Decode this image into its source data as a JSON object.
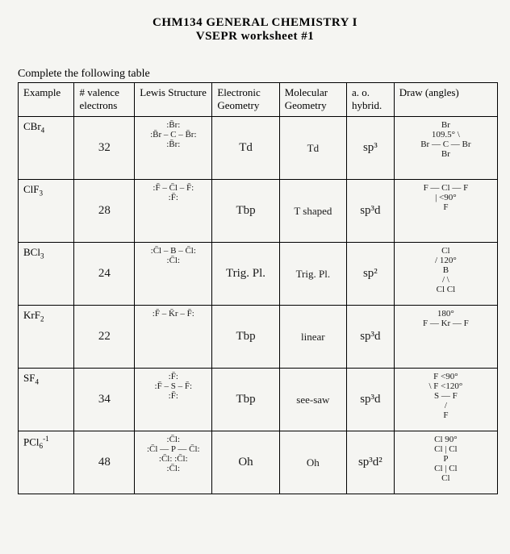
{
  "header": {
    "course": "CHM134 GENERAL CHEMISTRY I",
    "worksheet": "VSEPR worksheet #1"
  },
  "prompt": "Complete the following table",
  "columns": {
    "example": "Example",
    "valence": "# valence electrons",
    "lewis": "Lewis Structure",
    "egeom": "Electronic Geometry",
    "mgeom": "Molecular Geometry",
    "hybrid": "a. o. hybrid.",
    "draw": "Draw (angles)"
  },
  "rows": [
    {
      "example": "CBr",
      "example_sub": "4",
      "valence": "32",
      "lewis": ":B̄r:\n:B̄r – C – B̄r:\n:B̄r:",
      "egeom": "Td",
      "mgeom": "Td",
      "hybrid": "sp³",
      "draw": "Br\n109.5°  \\\nBr — C — Br\nBr"
    },
    {
      "example": "ClF",
      "example_sub": "3",
      "valence": "28",
      "lewis": ":F̄ – C̄l – F̄:\n:F̄:",
      "egeom": "Tbp",
      "mgeom": "T shaped",
      "hybrid": "sp³d",
      "draw": "F — Cl — F\n   |   <90°\n   F"
    },
    {
      "example": "BCl",
      "example_sub": "3",
      "valence": "24",
      "lewis": ":C̄l – B – C̄l:\n:C̄l:",
      "egeom": "Trig. Pl.",
      "mgeom": "Trig. Pl.",
      "hybrid": "sp²",
      "draw": "   Cl\n  / 120°\nB\n / \\\nCl  Cl"
    },
    {
      "example": "KrF",
      "example_sub": "2",
      "valence": "22",
      "lewis": ":F̄ – K̄r – F̄:",
      "egeom": "Tbp",
      "mgeom": "linear",
      "hybrid": "sp³d",
      "draw": "180°\nF — Kr — F"
    },
    {
      "example": "SF",
      "example_sub": "4",
      "valence": "34",
      "lewis": ":F̄:\n:F̄ – S – F̄:\n:F̄:",
      "egeom": "Tbp",
      "mgeom": "see-saw",
      "hybrid": "sp³d",
      "draw": "F  <90°\n \\ F <120°\nS — F\n / \nF"
    },
    {
      "example": "PCl",
      "example_sub": "6",
      "example_sup": "-1",
      "valence": "48",
      "lewis": ":C̄l:\n:C̄l — P — C̄l:\n:C̄l:  :C̄l:\n:C̄l:",
      "egeom": "Oh",
      "mgeom": "Oh",
      "hybrid": "sp³d²",
      "draw": "Cl  90°\nCl | Cl\n  P\nCl | Cl\n  Cl"
    }
  ],
  "colors": {
    "background": "#f5f5f2",
    "text": "#000000",
    "border": "#000000",
    "handwriting": "#1a1a1a"
  },
  "fonts": {
    "print": "Times New Roman",
    "handwritten": "Comic Sans MS"
  }
}
